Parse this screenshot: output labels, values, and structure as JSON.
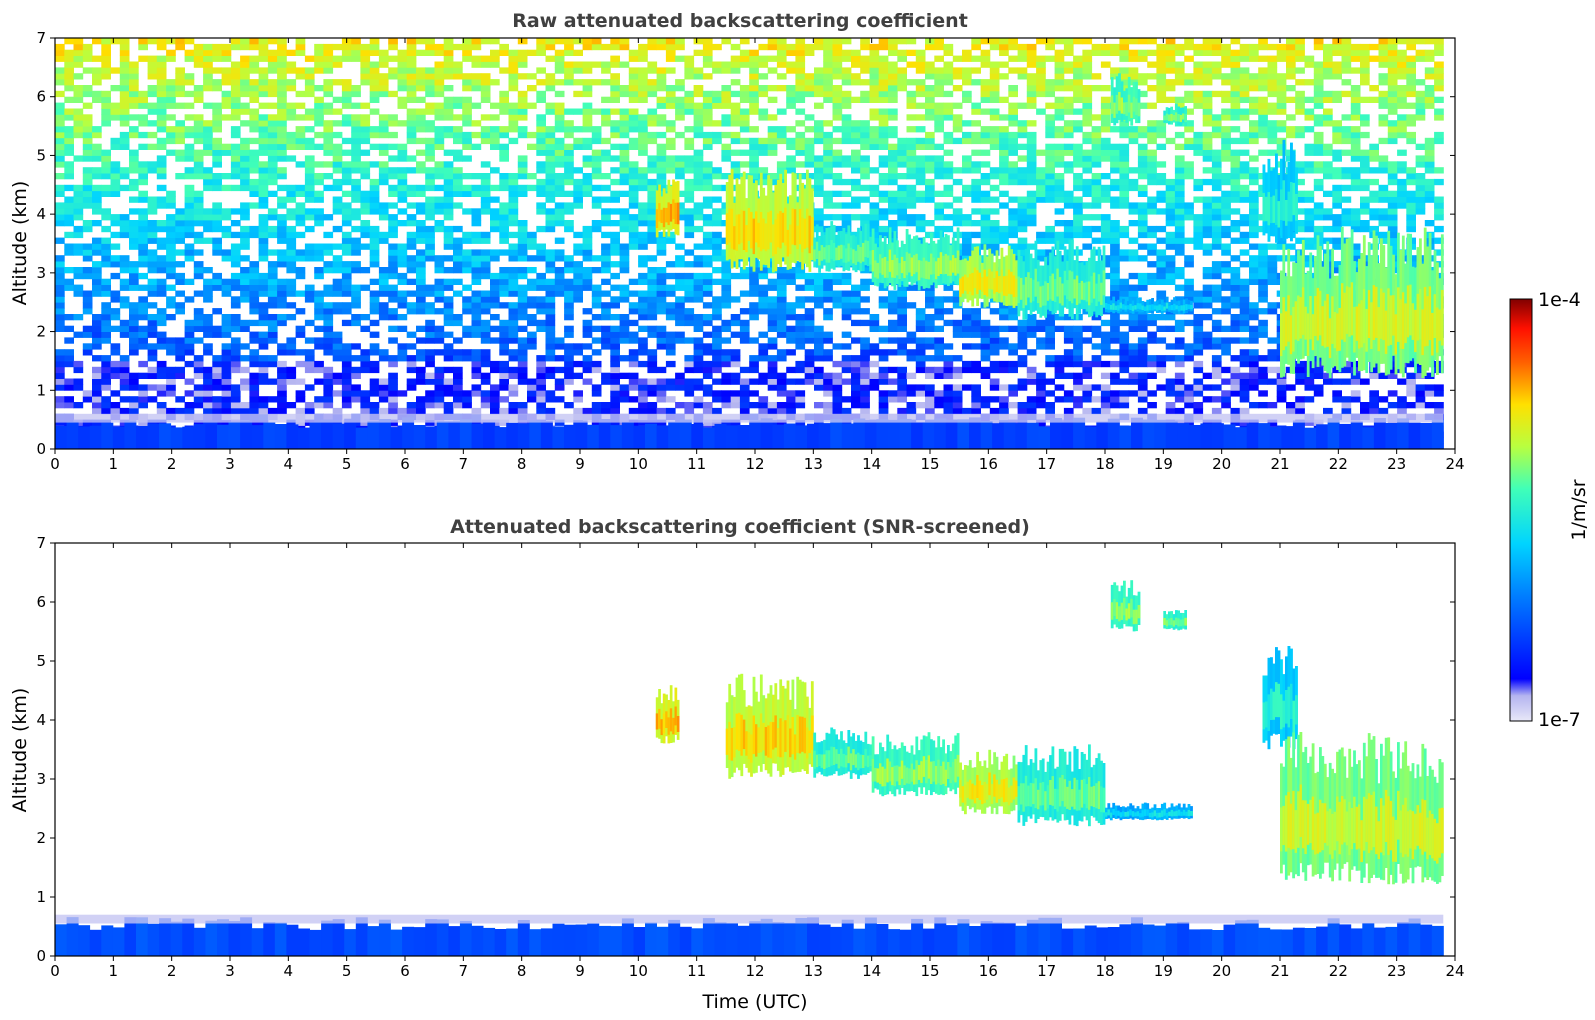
{
  "chart_data": [
    {
      "type": "heatmap",
      "title": "Raw attenuated backscattering coefficient",
      "xlabel": "",
      "ylabel": "Altitude (km)",
      "xlim": [
        0,
        24
      ],
      "ylim": [
        0,
        7
      ],
      "xticks": [
        "0",
        "1",
        "2",
        "3",
        "4",
        "5",
        "6",
        "7",
        "8",
        "9",
        "10",
        "11",
        "12",
        "13",
        "14",
        "15",
        "16",
        "17",
        "18",
        "19",
        "20",
        "21",
        "22",
        "23",
        "24"
      ],
      "yticks": [
        "0",
        "1",
        "2",
        "3",
        "4",
        "5",
        "6",
        "7"
      ],
      "colorscale": "log",
      "value_range": [
        1e-07,
        0.0001
      ],
      "data_end_time": 23.8,
      "noise": "high",
      "features": [
        {
          "kind": "boundary_layer",
          "x": [
            0,
            23.8
          ],
          "y_top": 0.45,
          "level": 0.2
        },
        {
          "kind": "cloud",
          "x": [
            10.3,
            10.7
          ],
          "y": [
            3.6,
            4.6
          ],
          "level": 0.78
        },
        {
          "kind": "cloud",
          "x": [
            11.5,
            13.0
          ],
          "y": [
            3.0,
            4.8
          ],
          "level": 0.75
        },
        {
          "kind": "cloud",
          "x": [
            13.0,
            14.0
          ],
          "y": [
            3.0,
            3.9
          ],
          "level": 0.58
        },
        {
          "kind": "cloud",
          "x": [
            14.0,
            15.5
          ],
          "y": [
            2.7,
            3.8
          ],
          "level": 0.62
        },
        {
          "kind": "cloud",
          "x": [
            15.5,
            16.5
          ],
          "y": [
            2.4,
            3.5
          ],
          "level": 0.72
        },
        {
          "kind": "cloud",
          "x": [
            16.5,
            18.0
          ],
          "y": [
            2.2,
            3.6
          ],
          "level": 0.58
        },
        {
          "kind": "cloud",
          "x": [
            18.0,
            19.5
          ],
          "y": [
            2.3,
            2.6
          ],
          "level": 0.45
        },
        {
          "kind": "cloud",
          "x": [
            18.1,
            18.6
          ],
          "y": [
            5.5,
            6.4
          ],
          "level": 0.62
        },
        {
          "kind": "cloud",
          "x": [
            19.0,
            19.4
          ],
          "y": [
            5.5,
            5.9
          ],
          "level": 0.6
        },
        {
          "kind": "cloud",
          "x": [
            20.7,
            21.3
          ],
          "y": [
            3.5,
            5.3
          ],
          "level": 0.5
        },
        {
          "kind": "cloud",
          "x": [
            21.0,
            23.8
          ],
          "y": [
            1.2,
            3.8
          ],
          "level": 0.68
        }
      ]
    },
    {
      "type": "heatmap",
      "title": "Attenuated backscattering coefficient (SNR-screened)",
      "xlabel": "Time (UTC)",
      "ylabel": "Altitude (km)",
      "xlim": [
        0,
        24
      ],
      "ylim": [
        0,
        7
      ],
      "xticks": [
        "0",
        "1",
        "2",
        "3",
        "4",
        "5",
        "6",
        "7",
        "8",
        "9",
        "10",
        "11",
        "12",
        "13",
        "14",
        "15",
        "16",
        "17",
        "18",
        "19",
        "20",
        "21",
        "22",
        "23",
        "24"
      ],
      "yticks": [
        "0",
        "1",
        "2",
        "3",
        "4",
        "5",
        "6",
        "7"
      ],
      "colorscale": "log",
      "value_range": [
        1e-07,
        0.0001
      ],
      "data_end_time": 23.8,
      "noise": "none",
      "features": [
        {
          "kind": "boundary_layer",
          "x": [
            0,
            23.8
          ],
          "y_top": 0.55,
          "level": 0.22
        },
        {
          "kind": "cloud",
          "x": [
            10.3,
            10.7
          ],
          "y": [
            3.6,
            4.6
          ],
          "level": 0.78
        },
        {
          "kind": "cloud",
          "x": [
            11.5,
            13.0
          ],
          "y": [
            3.0,
            4.8
          ],
          "level": 0.75
        },
        {
          "kind": "cloud",
          "x": [
            13.0,
            14.0
          ],
          "y": [
            3.0,
            3.9
          ],
          "level": 0.58
        },
        {
          "kind": "cloud",
          "x": [
            14.0,
            15.5
          ],
          "y": [
            2.7,
            3.8
          ],
          "level": 0.62
        },
        {
          "kind": "cloud",
          "x": [
            15.5,
            16.5
          ],
          "y": [
            2.4,
            3.5
          ],
          "level": 0.72
        },
        {
          "kind": "cloud",
          "x": [
            16.5,
            18.0
          ],
          "y": [
            2.2,
            3.6
          ],
          "level": 0.58
        },
        {
          "kind": "cloud",
          "x": [
            18.0,
            19.5
          ],
          "y": [
            2.3,
            2.6
          ],
          "level": 0.45
        },
        {
          "kind": "cloud",
          "x": [
            18.1,
            18.6
          ],
          "y": [
            5.5,
            6.4
          ],
          "level": 0.62
        },
        {
          "kind": "cloud",
          "x": [
            19.0,
            19.4
          ],
          "y": [
            5.5,
            5.9
          ],
          "level": 0.6
        },
        {
          "kind": "cloud",
          "x": [
            20.7,
            21.3
          ],
          "y": [
            3.5,
            5.3
          ],
          "level": 0.5
        },
        {
          "kind": "cloud",
          "x": [
            21.0,
            23.8
          ],
          "y": [
            1.2,
            3.8
          ],
          "level": 0.68
        }
      ]
    }
  ],
  "colorbar": {
    "max_label": "1e-4",
    "min_label": "1e-7",
    "unit_label": "1/m/sr",
    "colormap": "jet",
    "low_end_colors": [
      "#e8e8f8",
      "#c8c8f0",
      "#a0a0ec"
    ]
  }
}
